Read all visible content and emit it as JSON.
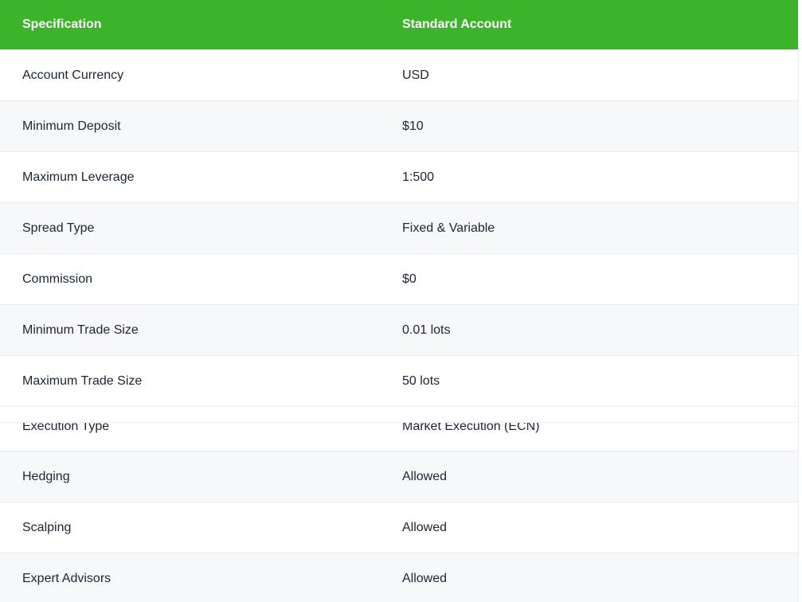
{
  "theme": {
    "header_bg": "#3bb32a",
    "header_text": "#ffffff",
    "row_bg": "#ffffff",
    "row_alt_bg": "#f7f8fa",
    "border": "#e9ebef",
    "text": "#1c2534"
  },
  "table": {
    "columns": [
      {
        "label": "Specification"
      },
      {
        "label": "Standard Account"
      }
    ],
    "rows": [
      {
        "spec": "Account Currency",
        "value": "USD"
      },
      {
        "spec": "Minimum Deposit",
        "value": "$10"
      },
      {
        "spec": "Maximum Leverage",
        "value": "1:500"
      },
      {
        "spec": "Spread Type",
        "value": "Fixed & Variable"
      },
      {
        "spec": "Commission",
        "value": "$0"
      },
      {
        "spec": "Minimum Trade Size",
        "value": "0.01 lots"
      },
      {
        "spec": "Maximum Trade Size",
        "value": "50 lots"
      },
      {
        "spec": "Execution Type",
        "value": "Market Execution (ECN)"
      },
      {
        "spec": "Hedging",
        "value": "Allowed"
      },
      {
        "spec": "Scalping",
        "value": "Allowed"
      },
      {
        "spec": "Expert Advisors",
        "value": "Allowed"
      }
    ]
  }
}
